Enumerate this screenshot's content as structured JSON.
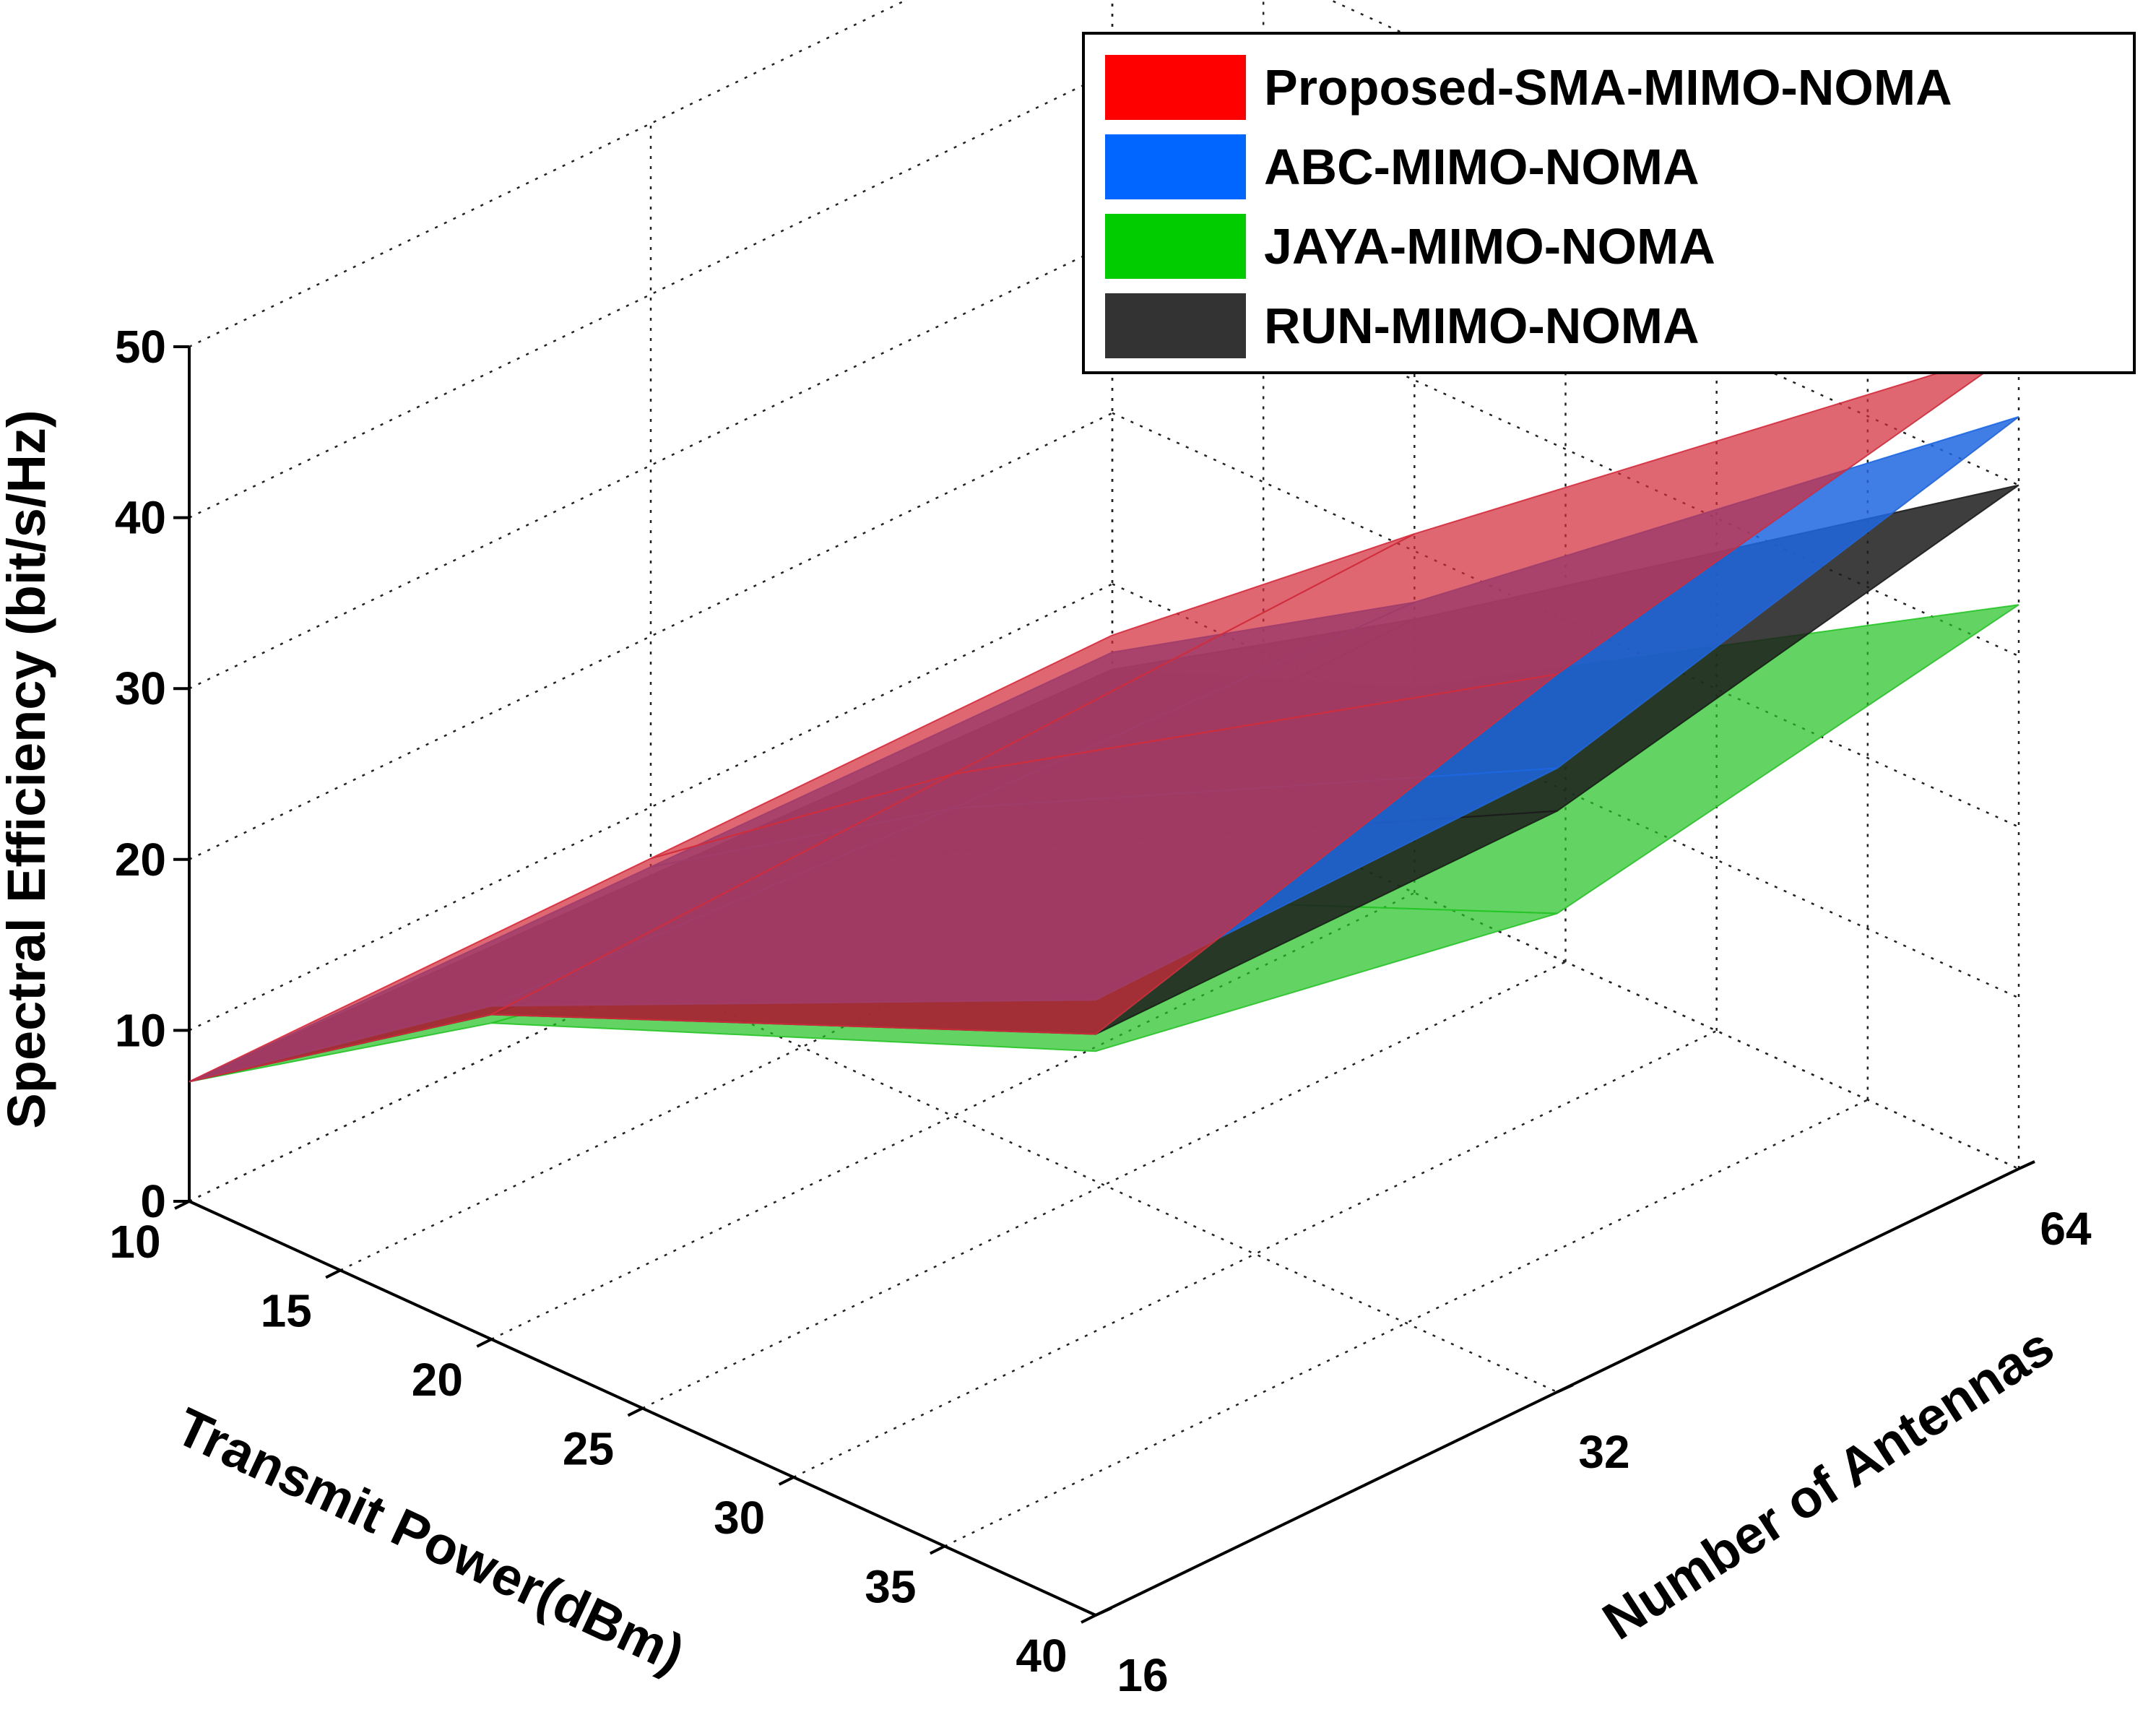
{
  "chart_data": {
    "type": "surface3d",
    "title": "",
    "xlabel": "Transmit Power(dBm)",
    "ylabel": "Number of Antennas",
    "zlabel": "Spectral Efficiency (bit/s/Hz)",
    "x_ticks": [
      "10",
      "15",
      "20",
      "25",
      "30",
      "35",
      "40"
    ],
    "y_ticks": [
      "16",
      "32",
      "64"
    ],
    "z_ticks": [
      "0",
      "10",
      "20",
      "30",
      "40",
      "50"
    ],
    "xlim": [
      10,
      40
    ],
    "ylim": [
      16,
      64
    ],
    "zlim": [
      0,
      50
    ],
    "grid": true,
    "legend_position": "top-right",
    "x": [
      10,
      20,
      40
    ],
    "y": [
      16,
      32,
      64
    ],
    "series": [
      {
        "name": "Proposed-SMA-MIMO-NOMA",
        "color": "#d22c3c",
        "legend_color": "#ff0000",
        "z": [
          [
            7,
            7,
            7
          ],
          [
            19,
            20,
            21
          ],
          [
            34,
            42,
            48
          ]
        ]
      },
      {
        "name": "ABC-MIMO-NOMA",
        "color": "#1e66e0",
        "legend_color": "#0066ff",
        "z": [
          [
            7,
            6.5,
            6
          ],
          [
            19.5,
            18,
            17
          ],
          [
            36,
            36.5,
            44
          ]
        ]
      },
      {
        "name": "JAYA-MIMO-NOMA",
        "color": "#27c427",
        "legend_color": "#00cc00",
        "z": [
          [
            7,
            6,
            5
          ],
          [
            18.5,
            13,
            12
          ],
          [
            33,
            28,
            33
          ]
        ]
      },
      {
        "name": "RUN-MIMO-NOMA",
        "color": "#1c1c1c",
        "legend_color": "#333333",
        "z": [
          [
            7,
            6,
            5
          ],
          [
            19,
            15.5,
            16
          ],
          [
            34,
            34,
            40
          ]
        ]
      }
    ]
  }
}
